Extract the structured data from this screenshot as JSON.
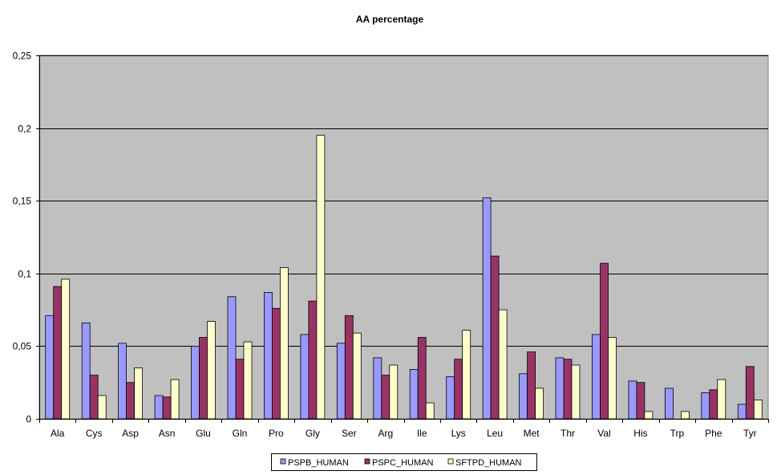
{
  "chart_data": {
    "type": "bar",
    "title": "AA percentage",
    "xlabel": "",
    "ylabel": "",
    "ylim": [
      0,
      0.25
    ],
    "yticks": [
      0,
      0.05,
      0.1,
      0.15,
      0.2,
      0.25
    ],
    "ytick_labels": [
      "0",
      "0,05",
      "0,1",
      "0,15",
      "0,2",
      "0,25"
    ],
    "grid": "horizontal",
    "legend_position": "bottom",
    "plot_background": "#c0c0c0",
    "categories": [
      "Ala",
      "Cys",
      "Asp",
      "Asn",
      "Glu",
      "Gln",
      "Pro",
      "Gly",
      "Ser",
      "Arg",
      "Ile",
      "Lys",
      "Leu",
      "Met",
      "Thr",
      "Val",
      "His",
      "Trp",
      "Phe",
      "Tyr"
    ],
    "series": [
      {
        "name": "PSPB_HUMAN",
        "color": "#9999ff",
        "values": [
          0.071,
          0.066,
          0.052,
          0.016,
          0.05,
          0.084,
          0.087,
          0.058,
          0.052,
          0.042,
          0.034,
          0.029,
          0.152,
          0.031,
          0.042,
          0.058,
          0.026,
          0.021,
          0.018,
          0.01
        ]
      },
      {
        "name": "PSPC_HUMAN",
        "color": "#993366",
        "values": [
          0.091,
          0.03,
          0.025,
          0.015,
          0.056,
          0.041,
          0.076,
          0.081,
          0.071,
          0.03,
          0.056,
          0.041,
          0.112,
          0.046,
          0.041,
          0.107,
          0.025,
          0.0,
          0.02,
          0.036
        ]
      },
      {
        "name": "SFTPD_HUMAN",
        "color": "#ffffcc",
        "values": [
          0.096,
          0.016,
          0.035,
          0.027,
          0.067,
          0.053,
          0.104,
          0.195,
          0.059,
          0.037,
          0.011,
          0.061,
          0.075,
          0.021,
          0.037,
          0.056,
          0.005,
          0.005,
          0.027,
          0.013
        ]
      }
    ]
  }
}
